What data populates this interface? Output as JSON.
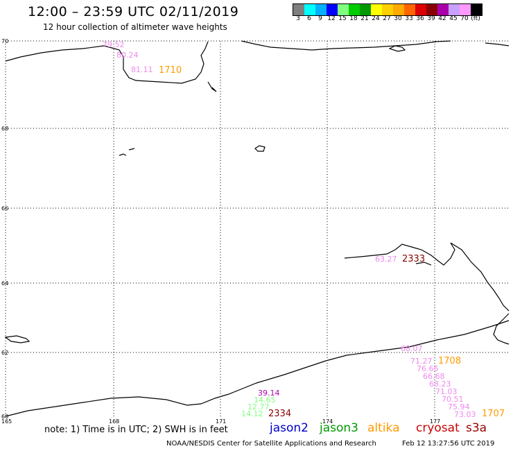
{
  "header": {
    "title": "12:00 – 23:59 UTC 02/11/2019",
    "subtitle": "12 hour collection of altimeter wave heights"
  },
  "legend": {
    "colors": [
      "#7f7f7f",
      "#00ffff",
      "#00b0ff",
      "#0000ff",
      "#80ff80",
      "#00cc00",
      "#009900",
      "#ffff00",
      "#ffd000",
      "#ffaa00",
      "#ff6600",
      "#dd0000",
      "#880000",
      "#aa00aa",
      "#c8a0ff",
      "#ff99ff",
      "#000000"
    ],
    "labels": [
      "3",
      "6",
      "9",
      "12",
      "15",
      "18",
      "21",
      "24",
      "27",
      "30",
      "33",
      "36",
      "39",
      "42",
      "45",
      "70",
      "(ft)"
    ]
  },
  "map": {
    "lat_labels": [
      "70",
      "68",
      "66",
      "64",
      "62",
      "60"
    ],
    "lon_labels": [
      "165",
      "168",
      "171",
      "174",
      "177"
    ],
    "swh_readings": [
      {
        "text": "79.52",
        "color": "#ee88ee"
      },
      {
        "text": "80.24",
        "color": "#ee88ee"
      },
      {
        "text": "81.11",
        "color": "#ee88ee"
      },
      {
        "text": "1710",
        "color": "#ff9900"
      },
      {
        "text": "63.27",
        "color": "#ee88ee"
      },
      {
        "text": "2333",
        "color": "#880000"
      },
      {
        "text": "68.07",
        "color": "#ee88ee"
      },
      {
        "text": "71.27",
        "color": "#ee88ee"
      },
      {
        "text": "1708",
        "color": "#ff9900"
      },
      {
        "text": "76.66",
        "color": "#ee88ee"
      },
      {
        "text": "66.68",
        "color": "#ee88ee"
      },
      {
        "text": "68.23",
        "color": "#ee88ee"
      },
      {
        "text": "71.03",
        "color": "#ee88ee"
      },
      {
        "text": "70.51",
        "color": "#ee88ee"
      },
      {
        "text": "75.94",
        "color": "#ee88ee"
      },
      {
        "text": "73.03",
        "color": "#ee88ee"
      },
      {
        "text": "1707",
        "color": "#ff9900"
      },
      {
        "text": "39.14",
        "color": "#aa00aa"
      },
      {
        "text": "14.65",
        "color": "#80ff80"
      },
      {
        "text": "12.77",
        "color": "#80ff80"
      },
      {
        "text": "14.12",
        "color": "#80ff80"
      },
      {
        "text": "2334",
        "color": "#880000"
      }
    ]
  },
  "footer": {
    "note": "note: 1) Time is in UTC; 2) SWH is in feet",
    "satellites": [
      {
        "name": "jason2",
        "color": "#0000cc"
      },
      {
        "name": "jason3",
        "color": "#009900"
      },
      {
        "name": "altika",
        "color": "#ff9900"
      },
      {
        "name": "cryosat",
        "color": "#cc0000"
      },
      {
        "name": "s3a",
        "color": "#990000"
      }
    ],
    "credit": "NOAA/NESDIS Center for Satellite Applications and Research",
    "timestamp": "Feb 12 13:27:56 UTC 2019"
  }
}
